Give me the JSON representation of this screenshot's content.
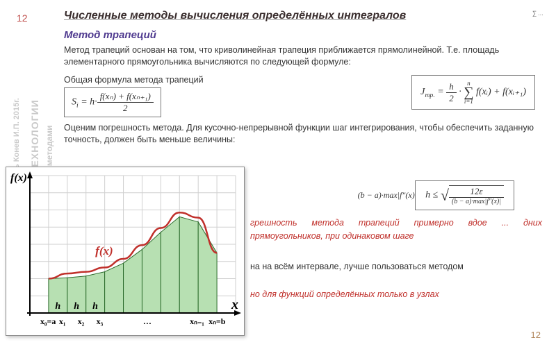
{
  "slide_number_top": "12",
  "slide_number_bottom": "12",
  "title": "Численные методы вычисления определённых интегралов",
  "top_formula": "∑ ...",
  "subtitle": "Метод трапеций",
  "body1": "Метод трапеций основан на том, что криволинейная трапеция приближается прямолинейной. Т.е. площадь элементарного прямоугольника вычисляются по следующей формуле:",
  "body2": "Общая формула метода трапеций",
  "formula1_lhs": "S",
  "formula1_sub": "i",
  "formula1_eq": " = h·",
  "formula1_num": "f(xₙ) + f(xₙ₊₁)",
  "formula1_den": "2",
  "formula2_lhs": "J",
  "formula2_sub": "тр.",
  "formula2_eq": " = ",
  "formula2_frac_num": "h",
  "formula2_frac_den": "2",
  "formula2_dot": " · ",
  "formula2_sum": "∑",
  "formula2_sum_low": "i=1",
  "formula2_sum_high": "n",
  "formula2_body": " f(xᵢ) + f(xᵢ₊₁)",
  "body3": "Оценим погрешность метода. Для кусочно-непрерывной функции шаг интегрирования, чтобы обеспечить заданную точность, должен быть меньше величины:",
  "formula3_lhs": "h ≤ ",
  "formula3_num": "12ε",
  "formula3_den": "(b − a)·max|f″(x)|",
  "formula_side": "(b − a)·max|f″(x)|",
  "red1": "грешность метода трапеций примерно вдое ... дних прямоугольников, при одинаковом шаге",
  "plain1": "на на всём интервале, лучше пользоваться методом",
  "red2": "но для функций определённых только в узлах",
  "watermark1": "ль Конев И.П. 2015г.",
  "watermark2": "ТЕХНОЛОГИИ",
  "watermark3": "и методами",
  "chart": {
    "type": "line-with-trapezoids",
    "bg": "#ffffff",
    "grid_color": "#cfcfcf",
    "curve_color": "#c0302b",
    "fill_color": "#b7e0b2",
    "fill_stroke": "#2b6b2b",
    "axis_color": "#000000",
    "label_yaxis": "f(x)",
    "label_xaxis": "x",
    "curve_label": "f(x)",
    "h_labels": [
      "h",
      "h",
      "h"
    ],
    "x_labels": [
      "x₀=a",
      "x₁",
      "x₂",
      "x₃",
      "…",
      "xₙ₋₁",
      "xₙ=b"
    ],
    "nx": 11,
    "ny": 8,
    "x_start": 1,
    "points_x": [
      1,
      2,
      3,
      4,
      5,
      6,
      7,
      8,
      9,
      10
    ],
    "points_y": [
      2.0,
      2.05,
      2.15,
      2.4,
      2.9,
      3.7,
      4.7,
      5.6,
      5.3,
      3.5
    ],
    "y_max": 8
  }
}
